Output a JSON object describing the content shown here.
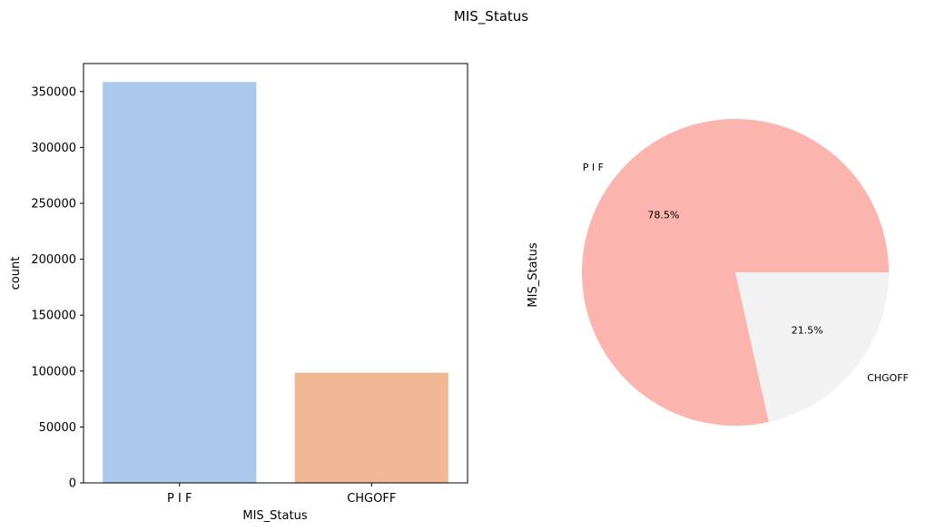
{
  "figure": {
    "suptitle": "MIS_Status"
  },
  "chart_data": [
    {
      "type": "bar",
      "xlabel": "MIS_Status",
      "ylabel": "count",
      "categories": [
        "P I F",
        "CHGOFF"
      ],
      "values": [
        358500,
        98500
      ],
      "colors": [
        "#abc9ec",
        "#f0b893"
      ],
      "ylim": [
        0,
        375000
      ],
      "yticks": [
        0,
        50000,
        100000,
        150000,
        200000,
        250000,
        300000,
        350000
      ],
      "grid": false
    },
    {
      "type": "pie",
      "ylabel": "MIS_Status",
      "labels": [
        "P I F",
        "CHGOFF"
      ],
      "values": [
        78.5,
        21.5
      ],
      "pct_labels": [
        "78.5%",
        "21.5%"
      ],
      "colors": [
        "#fbb4ae",
        "#f2f2f2"
      ],
      "startangle": 0,
      "direction": "counterclockwise"
    }
  ]
}
